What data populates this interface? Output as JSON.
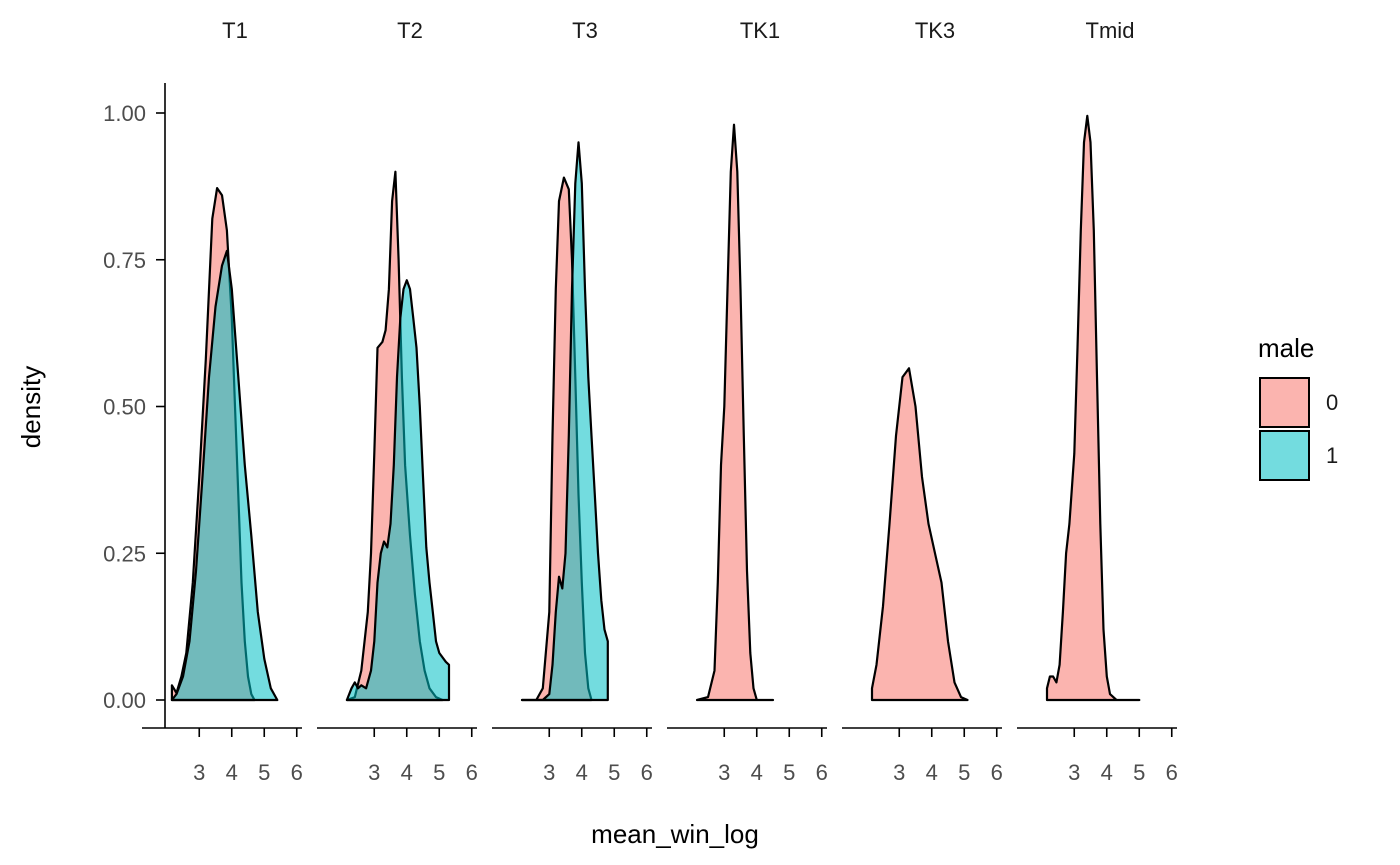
{
  "chart_data": {
    "type": "area",
    "subtype": "faceted density",
    "xlabel": "mean_win_log",
    "ylabel": "density",
    "ylim": [
      0,
      1.0
    ],
    "y_ticks": [
      0.0,
      0.25,
      0.5,
      0.75,
      1.0
    ],
    "y_tick_labels": [
      "0.00",
      "0.25",
      "0.50",
      "0.75",
      "1.00"
    ],
    "xlim": [
      2.1,
      6.1
    ],
    "x_ticks": [
      3,
      4,
      5,
      6
    ],
    "x_tick_labels": [
      "3",
      "4",
      "5",
      "6"
    ],
    "grid": false,
    "legend": {
      "title": "male",
      "position": "right",
      "entries": [
        {
          "label": "0",
          "color": "#F8766D"
        },
        {
          "label": "1",
          "color": "#00BFC4"
        }
      ]
    },
    "fill_alpha": 0.55,
    "facets": [
      {
        "title": "T1",
        "series": [
          {
            "group": "0",
            "points": [
              [
                2.16,
                0.025
              ],
              [
                2.3,
                0.012
              ],
              [
                2.45,
                0.04
              ],
              [
                2.6,
                0.08
              ],
              [
                2.8,
                0.2
              ],
              [
                3.0,
                0.38
              ],
              [
                3.2,
                0.58
              ],
              [
                3.4,
                0.82
              ],
              [
                3.55,
                0.872
              ],
              [
                3.7,
                0.86
              ],
              [
                3.85,
                0.8
              ],
              [
                4.0,
                0.65
              ],
              [
                4.1,
                0.5
              ],
              [
                4.2,
                0.35
              ],
              [
                4.3,
                0.2
              ],
              [
                4.4,
                0.1
              ],
              [
                4.5,
                0.04
              ],
              [
                4.6,
                0.01
              ],
              [
                4.7,
                0.0
              ]
            ]
          },
          {
            "group": "1",
            "points": [
              [
                2.16,
                0.0
              ],
              [
                2.3,
                0.01
              ],
              [
                2.5,
                0.04
              ],
              [
                2.7,
                0.1
              ],
              [
                2.9,
                0.22
              ],
              [
                3.1,
                0.38
              ],
              [
                3.3,
                0.55
              ],
              [
                3.5,
                0.67
              ],
              [
                3.7,
                0.74
              ],
              [
                3.85,
                0.765
              ],
              [
                4.0,
                0.7
              ],
              [
                4.2,
                0.55
              ],
              [
                4.4,
                0.4
              ],
              [
                4.6,
                0.28
              ],
              [
                4.8,
                0.15
              ],
              [
                5.0,
                0.07
              ],
              [
                5.2,
                0.02
              ],
              [
                5.4,
                0.0
              ]
            ]
          }
        ]
      },
      {
        "title": "T2",
        "series": [
          {
            "group": "0",
            "points": [
              [
                2.16,
                0.0
              ],
              [
                2.4,
                0.005
              ],
              [
                2.6,
                0.05
              ],
              [
                2.8,
                0.15
              ],
              [
                2.9,
                0.25
              ],
              [
                3.0,
                0.42
              ],
              [
                3.1,
                0.6
              ],
              [
                3.25,
                0.61
              ],
              [
                3.35,
                0.63
              ],
              [
                3.45,
                0.7
              ],
              [
                3.55,
                0.85
              ],
              [
                3.65,
                0.9
              ],
              [
                3.75,
                0.75
              ],
              [
                3.85,
                0.55
              ],
              [
                3.95,
                0.4
              ],
              [
                4.1,
                0.28
              ],
              [
                4.25,
                0.18
              ],
              [
                4.4,
                0.1
              ],
              [
                4.55,
                0.05
              ],
              [
                4.7,
                0.02
              ],
              [
                4.9,
                0.005
              ],
              [
                5.1,
                0.0
              ]
            ]
          },
          {
            "group": "1",
            "points": [
              [
                2.16,
                0.0
              ],
              [
                2.3,
                0.02
              ],
              [
                2.4,
                0.03
              ],
              [
                2.5,
                0.02
              ],
              [
                2.6,
                0.025
              ],
              [
                2.75,
                0.02
              ],
              [
                2.9,
                0.05
              ],
              [
                3.0,
                0.1
              ],
              [
                3.1,
                0.2
              ],
              [
                3.2,
                0.25
              ],
              [
                3.3,
                0.27
              ],
              [
                3.4,
                0.26
              ],
              [
                3.5,
                0.3
              ],
              [
                3.6,
                0.4
              ],
              [
                3.7,
                0.55
              ],
              [
                3.8,
                0.65
              ],
              [
                3.9,
                0.7
              ],
              [
                4.0,
                0.715
              ],
              [
                4.1,
                0.7
              ],
              [
                4.2,
                0.65
              ],
              [
                4.3,
                0.6
              ],
              [
                4.4,
                0.5
              ],
              [
                4.5,
                0.38
              ],
              [
                4.6,
                0.26
              ],
              [
                4.7,
                0.2
              ],
              [
                4.8,
                0.15
              ],
              [
                4.9,
                0.1
              ],
              [
                5.0,
                0.08
              ],
              [
                5.2,
                0.065
              ],
              [
                5.3,
                0.06
              ]
            ]
          }
        ]
      },
      {
        "title": "T3",
        "series": [
          {
            "group": "0",
            "points": [
              [
                2.16,
                0.0
              ],
              [
                2.6,
                0.0
              ],
              [
                2.8,
                0.02
              ],
              [
                3.0,
                0.15
              ],
              [
                3.1,
                0.45
              ],
              [
                3.2,
                0.7
              ],
              [
                3.3,
                0.85
              ],
              [
                3.45,
                0.89
              ],
              [
                3.6,
                0.87
              ],
              [
                3.7,
                0.75
              ],
              [
                3.8,
                0.55
              ],
              [
                3.9,
                0.35
              ],
              [
                4.0,
                0.2
              ],
              [
                4.1,
                0.08
              ],
              [
                4.2,
                0.02
              ],
              [
                4.3,
                0.0
              ]
            ]
          },
          {
            "group": "1",
            "points": [
              [
                2.16,
                0.0
              ],
              [
                2.8,
                0.0
              ],
              [
                3.0,
                0.01
              ],
              [
                3.1,
                0.06
              ],
              [
                3.2,
                0.15
              ],
              [
                3.3,
                0.21
              ],
              [
                3.4,
                0.19
              ],
              [
                3.5,
                0.25
              ],
              [
                3.6,
                0.45
              ],
              [
                3.7,
                0.7
              ],
              [
                3.8,
                0.88
              ],
              [
                3.9,
                0.95
              ],
              [
                4.0,
                0.88
              ],
              [
                4.1,
                0.7
              ],
              [
                4.2,
                0.55
              ],
              [
                4.3,
                0.45
              ],
              [
                4.4,
                0.35
              ],
              [
                4.5,
                0.25
              ],
              [
                4.6,
                0.17
              ],
              [
                4.7,
                0.12
              ],
              [
                4.8,
                0.1
              ]
            ]
          }
        ]
      },
      {
        "title": "TK1",
        "series": [
          {
            "group": "0",
            "points": [
              [
                2.16,
                0.0
              ],
              [
                2.5,
                0.005
              ],
              [
                2.7,
                0.05
              ],
              [
                2.8,
                0.2
              ],
              [
                2.9,
                0.4
              ],
              [
                3.0,
                0.5
              ],
              [
                3.1,
                0.7
              ],
              [
                3.2,
                0.9
              ],
              [
                3.3,
                0.98
              ],
              [
                3.4,
                0.9
              ],
              [
                3.5,
                0.7
              ],
              [
                3.6,
                0.45
              ],
              [
                3.7,
                0.22
              ],
              [
                3.8,
                0.08
              ],
              [
                3.9,
                0.02
              ],
              [
                4.0,
                0.0
              ],
              [
                4.5,
                0.0
              ]
            ]
          }
        ]
      },
      {
        "title": "TK3",
        "series": [
          {
            "group": "0",
            "points": [
              [
                2.16,
                0.02
              ],
              [
                2.3,
                0.06
              ],
              [
                2.5,
                0.16
              ],
              [
                2.7,
                0.3
              ],
              [
                2.9,
                0.45
              ],
              [
                3.1,
                0.55
              ],
              [
                3.3,
                0.565
              ],
              [
                3.5,
                0.5
              ],
              [
                3.7,
                0.38
              ],
              [
                3.9,
                0.3
              ],
              [
                4.1,
                0.25
              ],
              [
                4.3,
                0.2
              ],
              [
                4.5,
                0.1
              ],
              [
                4.7,
                0.03
              ],
              [
                4.9,
                0.005
              ],
              [
                5.1,
                0.0
              ]
            ]
          }
        ]
      },
      {
        "title": "Tmid",
        "series": [
          {
            "group": "0",
            "points": [
              [
                2.16,
                0.02
              ],
              [
                2.25,
                0.04
              ],
              [
                2.35,
                0.04
              ],
              [
                2.45,
                0.03
              ],
              [
                2.55,
                0.06
              ],
              [
                2.65,
                0.15
              ],
              [
                2.75,
                0.25
              ],
              [
                2.85,
                0.3
              ],
              [
                3.0,
                0.42
              ],
              [
                3.1,
                0.6
              ],
              [
                3.2,
                0.8
              ],
              [
                3.3,
                0.95
              ],
              [
                3.4,
                0.995
              ],
              [
                3.5,
                0.95
              ],
              [
                3.6,
                0.8
              ],
              [
                3.7,
                0.55
              ],
              [
                3.8,
                0.3
              ],
              [
                3.9,
                0.12
              ],
              [
                4.0,
                0.04
              ],
              [
                4.1,
                0.01
              ],
              [
                4.3,
                0.0
              ],
              [
                5.0,
                0.0
              ]
            ]
          }
        ]
      }
    ]
  }
}
